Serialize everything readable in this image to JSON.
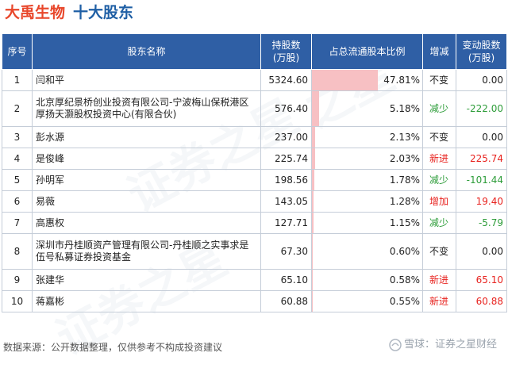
{
  "title": {
    "company": "大禹生物",
    "section": "十大股东"
  },
  "headers": {
    "rank": "序号",
    "name": "股东名称",
    "holding": "持股数\n(万股)",
    "ratio": "占总流通股本比例",
    "change": "增减",
    "change_amount": "变动股数\n(万股)"
  },
  "rows": [
    {
      "rank": "1",
      "name": "闫和平",
      "holding": "5324.60",
      "ratio": "47.81%",
      "ratio_value": 47.81,
      "change": "不变",
      "change_type": "unchanged",
      "change_amount": "0.00"
    },
    {
      "rank": "2",
      "name": "北京厚纪景桥创业投资有限公司-宁波梅山保税港区厚扬天灏股权投资中心(有限合伙)",
      "holding": "576.40",
      "ratio": "5.18%",
      "ratio_value": 5.18,
      "change": "减少",
      "change_type": "down",
      "change_amount": "-222.00"
    },
    {
      "rank": "3",
      "name": "彭水源",
      "holding": "237.00",
      "ratio": "2.13%",
      "ratio_value": 2.13,
      "change": "不变",
      "change_type": "unchanged",
      "change_amount": "0.00"
    },
    {
      "rank": "4",
      "name": "是俊峰",
      "holding": "225.74",
      "ratio": "2.03%",
      "ratio_value": 2.03,
      "change": "新进",
      "change_type": "up",
      "change_amount": "225.74"
    },
    {
      "rank": "5",
      "name": "孙明军",
      "holding": "198.56",
      "ratio": "1.78%",
      "ratio_value": 1.78,
      "change": "减少",
      "change_type": "down",
      "change_amount": "-101.44"
    },
    {
      "rank": "6",
      "name": "易薇",
      "holding": "143.05",
      "ratio": "1.28%",
      "ratio_value": 1.28,
      "change": "增加",
      "change_type": "up",
      "change_amount": "19.40"
    },
    {
      "rank": "7",
      "name": "高惠权",
      "holding": "127.71",
      "ratio": "1.15%",
      "ratio_value": 1.15,
      "change": "减少",
      "change_type": "down",
      "change_amount": "-5.79"
    },
    {
      "rank": "8",
      "name": "深圳市丹桂顺资产管理有限公司-丹桂顺之实事求是伍号私募证券投资基金",
      "holding": "67.30",
      "ratio": "0.60%",
      "ratio_value": 0.6,
      "change": "不变",
      "change_type": "unchanged",
      "change_amount": "0.00"
    },
    {
      "rank": "9",
      "name": "张建华",
      "holding": "65.10",
      "ratio": "0.58%",
      "ratio_value": 0.58,
      "change": "新进",
      "change_type": "up",
      "change_amount": "65.10"
    },
    {
      "rank": "10",
      "name": "蒋嘉彬",
      "holding": "60.88",
      "ratio": "0.55%",
      "ratio_value": 0.55,
      "change": "新进",
      "change_type": "up",
      "change_amount": "60.88"
    }
  ],
  "footer": {
    "source": "数据来源：公开数据整理，仅供参考不构成投资建议"
  },
  "logo": {
    "text": "雪球：证券之星财经"
  },
  "colors": {
    "header_bg": "#2f5fa5",
    "bar": "#f7c0c3",
    "up": "#e8231f",
    "down": "#2e9d3a",
    "company": "#e8472b",
    "section": "#1f5fa5"
  }
}
